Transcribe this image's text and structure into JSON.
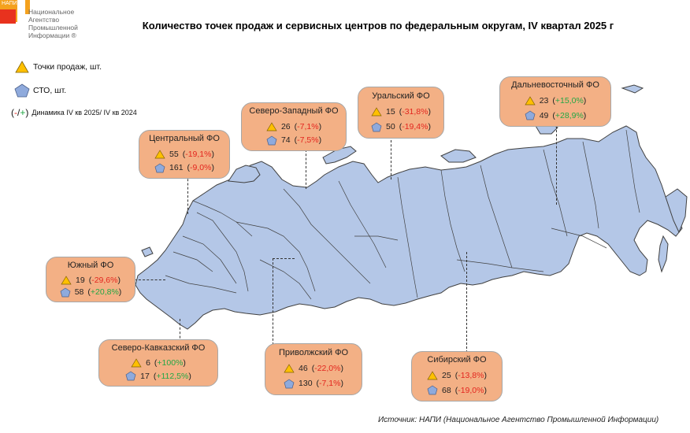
{
  "logo": {
    "abbr": "НАПИ",
    "name_lines": [
      "Национальное",
      "Агентство",
      "Промышленной",
      "Информации ®"
    ]
  },
  "title": "Количество точек продаж и сервисных центров по федеральным округам, IV квартал 2025 г",
  "legend": {
    "sales_points": "Точки продаж, шт.",
    "service_centers": "СТО, шт.",
    "dynamics_prefix": "(",
    "dynamics_neg": "-",
    "dynamics_sep": "/",
    "dynamics_pos": "+",
    "dynamics_suffix": ")",
    "dynamics_label": "Динамика IV кв 2025/ IV кв 2024"
  },
  "colors": {
    "callout_fill": "#f3b085",
    "map_fill": "#b4c7e7",
    "map_stroke": "#404040",
    "triangle": "#ffc000",
    "pentagon": "#8faadc",
    "negative": "#e3261f",
    "positive": "#22a745"
  },
  "icons": {
    "sales": "triangle-icon",
    "service": "pentagon-icon"
  },
  "districts": {
    "central": {
      "name": "Центральный ФО",
      "sales": "55",
      "sales_dyn": "-19,1%",
      "sales_sign": "neg",
      "sto": "161",
      "sto_dyn": "-9,0%",
      "sto_sign": "neg"
    },
    "northwest": {
      "name": "Северо-Западный ФО",
      "sales": "26",
      "sales_dyn": "-7,1%",
      "sales_sign": "neg",
      "sto": "74",
      "sto_dyn": "-7,5%",
      "sto_sign": "neg"
    },
    "ural": {
      "name": "Уральский ФО",
      "sales": "15",
      "sales_dyn": "-31,8%",
      "sales_sign": "neg",
      "sto": "50",
      "sto_dyn": "-19,4%",
      "sto_sign": "neg"
    },
    "fareast": {
      "name": "Дальневосточный ФО",
      "sales": "23",
      "sales_dyn": "+15,0%",
      "sales_sign": "pos",
      "sto": "49",
      "sto_dyn": "+28,9%",
      "sto_sign": "pos"
    },
    "south": {
      "name": "Южный ФО",
      "sales": "19",
      "sales_dyn": "-29,6%",
      "sales_sign": "neg",
      "sto": "58",
      "sto_dyn": "+20,8%",
      "sto_sign": "pos"
    },
    "ncaucasus": {
      "name": "Северо-Кавказский ФО",
      "sales": "6",
      "sales_dyn": "+100%",
      "sales_sign": "pos",
      "sto": "17",
      "sto_dyn": "+112,5%",
      "sto_sign": "pos"
    },
    "volga": {
      "name": "Приволжский ФО",
      "sales": "46",
      "sales_dyn": "-22,0%",
      "sales_sign": "neg",
      "sto": "130",
      "sto_dyn": "-7,1%",
      "sto_sign": "neg"
    },
    "siberia": {
      "name": "Сибирский ФО",
      "sales": "25",
      "sales_dyn": "-13,8%",
      "sales_sign": "neg",
      "sto": "68",
      "sto_dyn": "-19,0%",
      "sto_sign": "neg"
    }
  },
  "source": "Источник: НАПИ (Национальное Агентство Промышленной Информации)"
}
